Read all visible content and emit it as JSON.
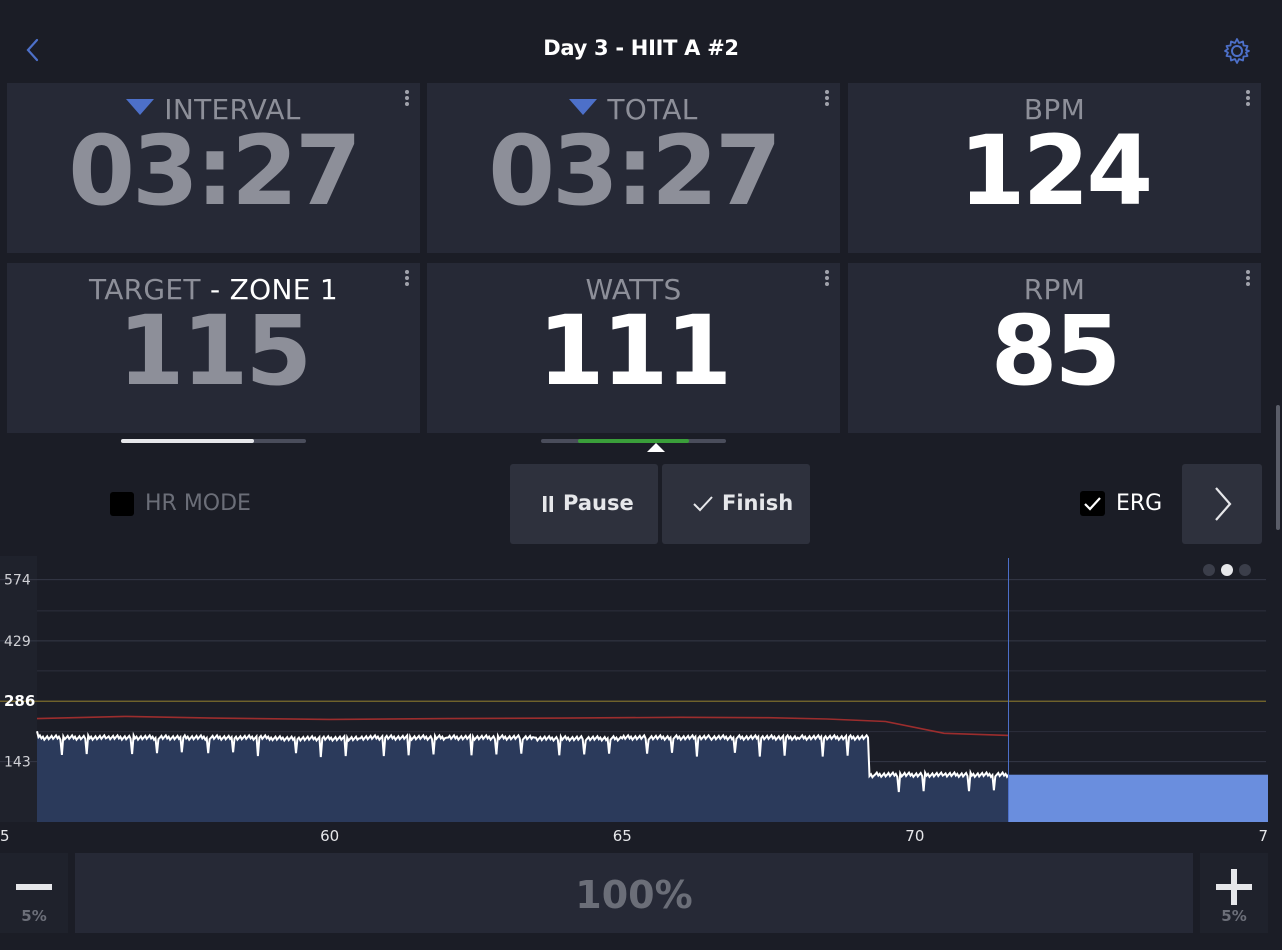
{
  "header": {
    "title": "Day 3 - HIIT A #2",
    "back_icon": "chevron-left-icon",
    "settings_icon": "gear-icon"
  },
  "tiles": {
    "interval": {
      "label": "INTERVAL",
      "value": "03:27",
      "icon": "triangle-down-icon"
    },
    "total": {
      "label": "TOTAL",
      "value": "03:27",
      "icon": "triangle-down-icon"
    },
    "bpm": {
      "label": "BPM",
      "value": "124"
    },
    "target": {
      "label": "TARGET",
      "zone": "- ZONE 1",
      "value": "115"
    },
    "watts": {
      "label": "WATTS",
      "value": "111"
    },
    "rpm": {
      "label": "RPM",
      "value": "85"
    }
  },
  "progress": {
    "interval_fraction": 0.72,
    "watts_range": [
      0.2,
      0.8
    ]
  },
  "controls": {
    "hr_mode": {
      "label": "HR MODE",
      "checked": false
    },
    "pause_label": "Pause",
    "finish_label": "Finish",
    "erg": {
      "label": "ERG",
      "checked": true
    }
  },
  "chart_data": {
    "type": "area",
    "y_ticks": [
      "574",
      "429",
      "286",
      "143"
    ],
    "x_ticks": [
      "5",
      "60",
      "65",
      "70",
      "7"
    ],
    "ylim": [
      0,
      630
    ],
    "xlim": [
      55,
      76
    ],
    "threshold": 286,
    "current_x": 71.6,
    "series": [
      {
        "values_x": [
          55,
          56.2,
          57.5,
          59,
          60.5,
          62,
          63.5,
          65,
          66.5,
          68,
          69.2,
          69.3,
          70.5,
          71.6
        ],
        "values_y": [
          215,
          200,
          200,
          200,
          198,
          200,
          200,
          198,
          200,
          200,
          200,
          110,
          112,
          112
        ]
      },
      {
        "values_x": [
          55,
          56.5,
          58,
          60,
          62,
          64,
          66,
          67.5,
          68.5,
          69.5,
          70.5,
          71.6
        ],
        "values_y": [
          245,
          250,
          246,
          243,
          245,
          246,
          248,
          247,
          244,
          238,
          210,
          205
        ]
      }
    ],
    "target_band": {
      "x_start": 71.6,
      "x_end": 76,
      "value": 112
    },
    "page_dots": 3,
    "active_page": 1
  },
  "footer": {
    "minus_step": "5%",
    "plus_step": "5%",
    "percent": "100%"
  },
  "colors": {
    "accent": "#4d70c9",
    "erg_fill": "#6a8ede",
    "area": "#2b3a5b",
    "hr_line": "#9c2d2d",
    "threshold": "#7a6a2a",
    "progress_green": "#3a9e3a"
  }
}
